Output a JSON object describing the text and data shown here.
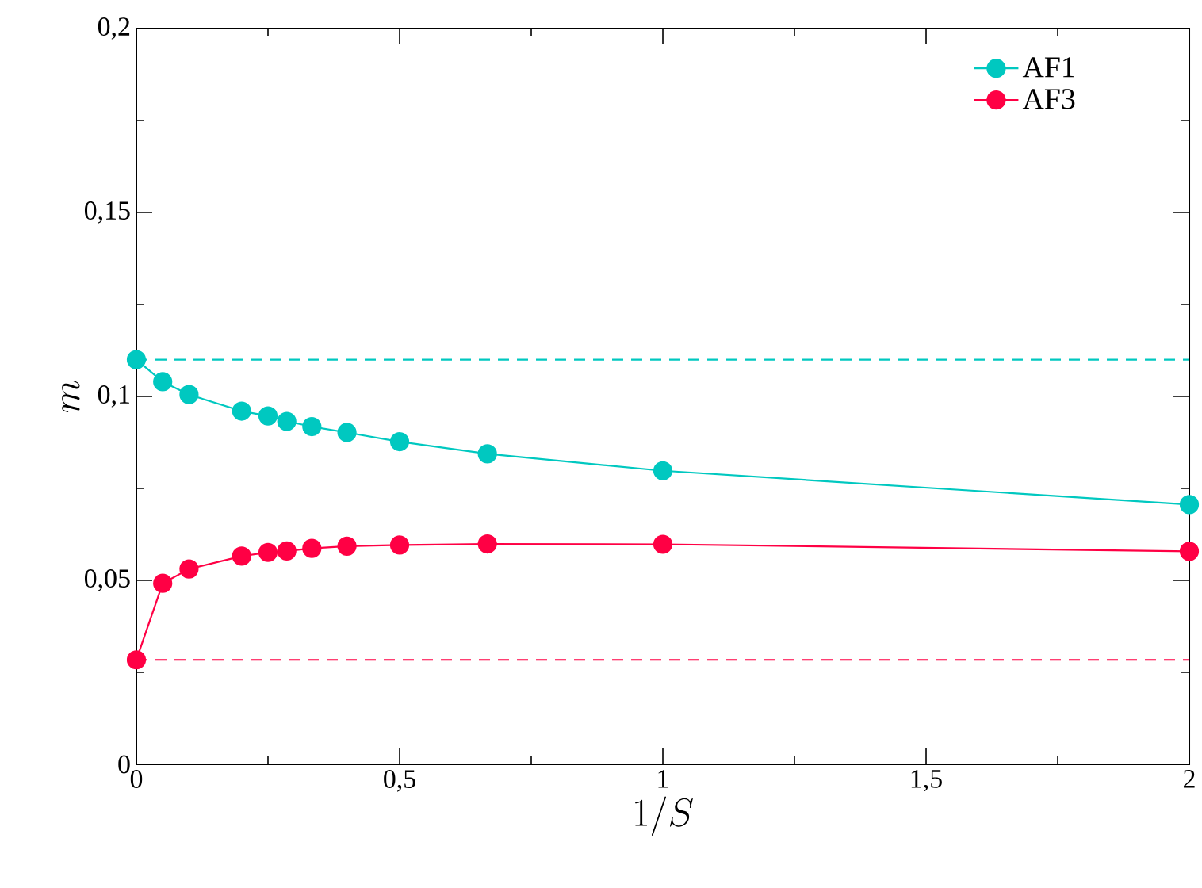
{
  "chart_data": {
    "type": "line",
    "xlabel": "1/S",
    "ylabel": "m",
    "xlim": [
      0,
      2
    ],
    "ylim": [
      0,
      0.2
    ],
    "xticks": [
      0,
      {
        "value": 0.5,
        "label": "0,5"
      },
      1,
      {
        "value": 1.5,
        "label": "1,5"
      },
      2
    ],
    "yticks": [
      0,
      {
        "value": 0.05,
        "label": "0,05"
      },
      {
        "value": 0.1,
        "label": "0,1"
      },
      {
        "value": 0.15,
        "label": "0,15"
      },
      {
        "value": 0.2,
        "label": "0,2"
      }
    ],
    "x": [
      0,
      0.05,
      0.1,
      0.2,
      0.25,
      0.2857,
      0.3333,
      0.4,
      0.5,
      0.6667,
      1,
      2
    ],
    "series": [
      {
        "name": "AF1",
        "color": "#00c8c0",
        "values": [
          0.11,
          0.104,
          0.1005,
          0.096,
          0.0947,
          0.0932,
          0.0918,
          0.0902,
          0.0877,
          0.0844,
          0.0798,
          0.0706
        ]
      },
      {
        "name": "AF3",
        "color": "#ff0044",
        "values": [
          0.0284,
          0.0492,
          0.0531,
          0.0566,
          0.0576,
          0.058,
          0.0587,
          0.0593,
          0.0596,
          0.0599,
          0.0598,
          0.0579
        ]
      }
    ],
    "ref_lines": [
      {
        "axis": "y",
        "value": 0.11,
        "color": "#00c8c0",
        "line_style": "dashed"
      },
      {
        "axis": "y",
        "value": 0.0284,
        "color": "#ff0044",
        "line_style": "dashed"
      }
    ],
    "marker": "circle",
    "line_style": "solid",
    "legend": "top right",
    "grid": false
  }
}
